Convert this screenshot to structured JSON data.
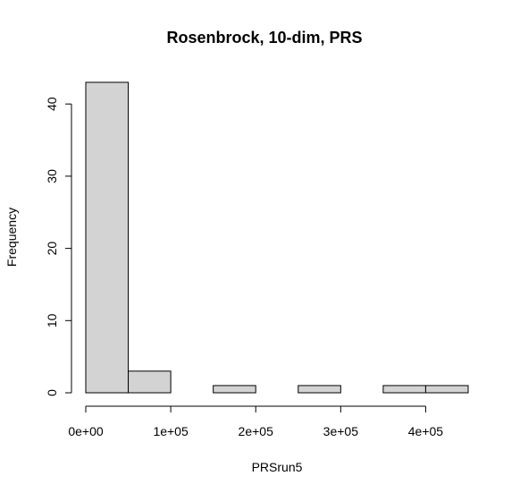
{
  "chart_data": {
    "type": "bar",
    "title": "Rosenbrock, 10-dim, PRS",
    "xlabel": "PRSrun5",
    "ylabel": "Frequency",
    "bin_edges": [
      0,
      50000,
      100000,
      150000,
      200000,
      250000,
      300000,
      350000,
      400000,
      450000
    ],
    "values": [
      43,
      3,
      0,
      1,
      0,
      1,
      0,
      1,
      1
    ],
    "xlim": [
      0,
      450000
    ],
    "ylim": [
      0,
      43
    ],
    "x_ticks": [
      0,
      100000,
      200000,
      300000,
      400000
    ],
    "x_tick_labels": [
      "0e+00",
      "1e+05",
      "2e+05",
      "3e+05",
      "4e+05"
    ],
    "y_ticks": [
      0,
      10,
      20,
      30,
      40
    ],
    "y_tick_labels": [
      "0",
      "10",
      "20",
      "30",
      "40"
    ],
    "grid": false,
    "legend": "none"
  }
}
